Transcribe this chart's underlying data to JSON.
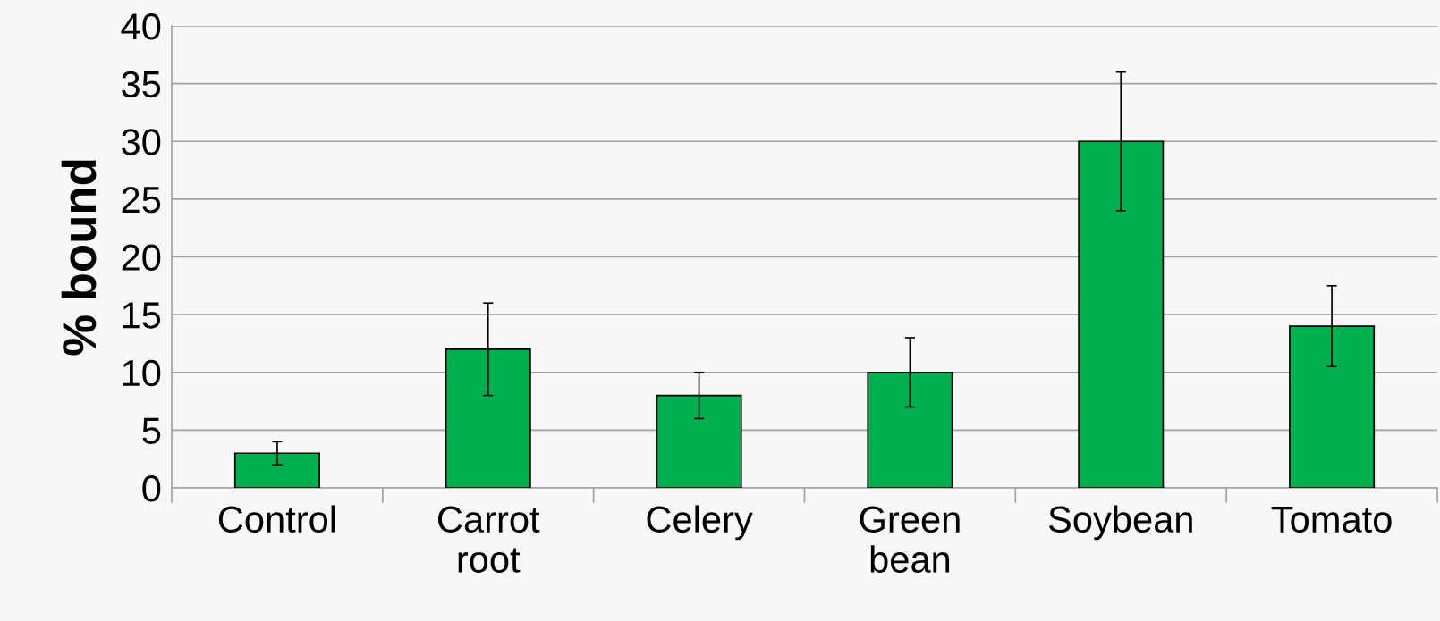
{
  "chart_data": {
    "type": "bar",
    "ylabel": "% bound",
    "categories": [
      "Control",
      "Carrot root",
      "Celery",
      "Green bean",
      "Soybean",
      "Tomato"
    ],
    "values": [
      3,
      12,
      8,
      10,
      30,
      14
    ],
    "errors": [
      1,
      4,
      2,
      3,
      6,
      3.5
    ],
    "color": "#00b050",
    "ylim": [
      0,
      40
    ],
    "yticks": [
      0,
      5,
      10,
      15,
      20,
      25,
      30,
      35,
      40
    ],
    "grid": "y"
  }
}
